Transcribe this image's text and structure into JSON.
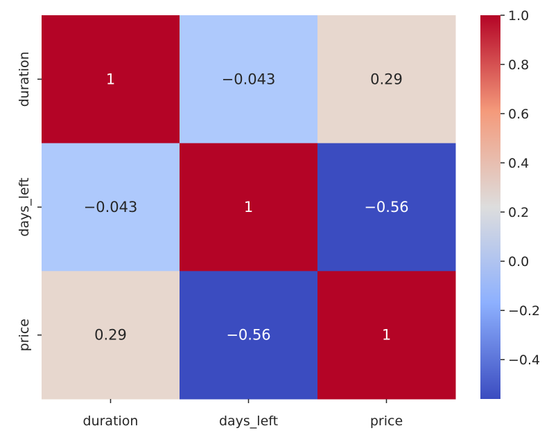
{
  "chart_data": {
    "type": "heatmap",
    "title": "",
    "xlabel": "",
    "ylabel": "",
    "x_categories": [
      "duration",
      "days_left",
      "price"
    ],
    "y_categories": [
      "duration",
      "days_left",
      "price"
    ],
    "values": [
      [
        1,
        -0.043,
        0.29
      ],
      [
        -0.043,
        1,
        -0.56
      ],
      [
        0.29,
        -0.56,
        1
      ]
    ],
    "annotations": [
      [
        "1",
        "−0.043",
        "0.29"
      ],
      [
        "−0.043",
        "1",
        "−0.56"
      ],
      [
        "0.29",
        "−0.56",
        "1"
      ]
    ],
    "colormap": "coolwarm",
    "colorbar": {
      "range": [
        -0.56,
        1.0
      ],
      "ticks": [
        -0.4,
        -0.2,
        0.0,
        0.2,
        0.4,
        0.6,
        0.8,
        1.0
      ],
      "tick_labels": [
        "−0.4",
        "−0.2",
        "0.0",
        "0.2",
        "0.4",
        "0.6",
        "0.8",
        "1.0"
      ]
    },
    "colors": {
      "cmap_stops": [
        "#3b4cc0",
        "#8db0fe",
        "#dddddd",
        "#f49a7b",
        "#b40426"
      ],
      "cell_1": "#b40426",
      "cell_neg_0_043": "#aec9fc",
      "cell_0_29": "#e7d7ce",
      "cell_neg_0_56": "#3b4cc0"
    }
  }
}
